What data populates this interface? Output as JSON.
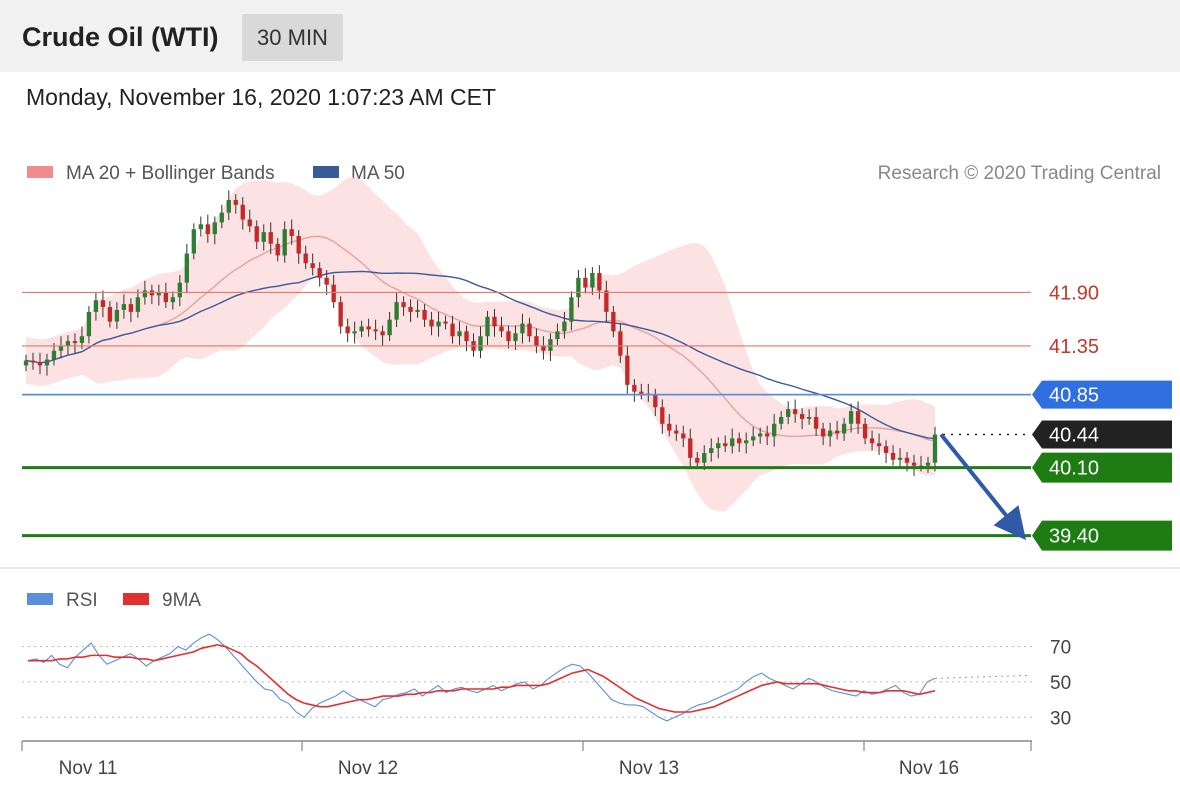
{
  "header": {
    "title": "Crude Oil (WTI)",
    "timeframe": "30 MIN"
  },
  "timestamp": "Monday, November 16, 2020 1:07:23 AM CET",
  "legend": {
    "bollinger": "MA 20 + Bollinger Bands",
    "ma50": "MA 50",
    "credit": "Research © 2020 Trading Central",
    "rsi": "RSI",
    "rsi_ma": "9MA"
  },
  "colors": {
    "band": "#fbd3d3",
    "ma20": "#e9a0a0",
    "ma50": "#3a5a9a",
    "up": "#2e7d32",
    "down": "#c62828",
    "resistance": "#e07a6a",
    "pivot_line": "#5b8fd9",
    "pivot_tag": "#2f6fe0",
    "support": "#1e7d12",
    "current_tag": "#222222",
    "rsi": "#5b8fd9",
    "rsi_ma": "#e03030",
    "arrow": "#2f5aa8"
  },
  "chart_data": [
    {
      "type": "candlestick",
      "title": "Crude Oil (WTI)",
      "timeframe": "30 MIN",
      "x_labels": [
        "Nov 11",
        "Nov 12",
        "Nov 13",
        "Nov 16"
      ],
      "ylim": [
        39.15,
        42.85
      ],
      "levels": [
        {
          "label": "41.90",
          "value": 41.9,
          "kind": "resistance"
        },
        {
          "label": "41.35",
          "value": 41.35,
          "kind": "resistance"
        },
        {
          "label": "40.85",
          "value": 40.85,
          "kind": "pivot"
        },
        {
          "label": "40.44",
          "value": 40.44,
          "kind": "current"
        },
        {
          "label": "40.10",
          "value": 40.1,
          "kind": "support"
        },
        {
          "label": "39.40",
          "value": 39.4,
          "kind": "support"
        }
      ],
      "forecast": {
        "from": 40.44,
        "to": 39.4
      },
      "closes": [
        41.2,
        41.18,
        41.15,
        41.21,
        41.3,
        41.35,
        41.4,
        41.38,
        41.45,
        41.7,
        41.82,
        41.75,
        41.6,
        41.72,
        41.78,
        41.7,
        41.85,
        41.92,
        41.87,
        41.9,
        41.8,
        41.85,
        42.0,
        42.3,
        42.55,
        42.6,
        42.5,
        42.62,
        42.72,
        42.85,
        42.8,
        42.65,
        42.58,
        42.42,
        42.52,
        42.4,
        42.28,
        42.55,
        42.48,
        42.3,
        42.2,
        42.15,
        42.05,
        41.98,
        41.8,
        41.55,
        41.48,
        41.5,
        41.55,
        41.52,
        41.5,
        41.46,
        41.62,
        41.8,
        41.75,
        41.7,
        41.72,
        41.62,
        41.55,
        41.6,
        41.58,
        41.45,
        41.5,
        41.4,
        41.3,
        41.45,
        41.65,
        41.55,
        41.5,
        41.4,
        41.48,
        41.58,
        41.45,
        41.35,
        41.3,
        41.42,
        41.5,
        41.6,
        41.85,
        42.05,
        41.95,
        42.1,
        41.92,
        41.7,
        41.5,
        41.25,
        40.95,
        40.88,
        40.86,
        40.85,
        40.72,
        40.55,
        40.48,
        40.45,
        40.4,
        40.2,
        40.15,
        40.25,
        40.3,
        40.35,
        40.32,
        40.4,
        40.35,
        40.38,
        40.42,
        40.45,
        40.42,
        40.55,
        40.62,
        40.7,
        40.65,
        40.6,
        40.62,
        40.5,
        40.42,
        40.48,
        40.45,
        40.55,
        40.68,
        40.55,
        40.4,
        40.35,
        40.32,
        40.25,
        40.18,
        40.2,
        40.15,
        40.12,
        40.12,
        40.15,
        40.44
      ]
    },
    {
      "type": "line",
      "title": "RSI",
      "series": [
        {
          "name": "RSI",
          "values": [
            62,
            63,
            61,
            65,
            60,
            58,
            64,
            68,
            72,
            65,
            60,
            62,
            64,
            66,
            63,
            59,
            62,
            64,
            66,
            70,
            68,
            72,
            75,
            77,
            74,
            70,
            65,
            60,
            55,
            50,
            46,
            45,
            40,
            38,
            33,
            30,
            35,
            38,
            40,
            42,
            45,
            42,
            40,
            38,
            36,
            40,
            41,
            43,
            44,
            46,
            42,
            45,
            48,
            44,
            46,
            47,
            45,
            44,
            46,
            48,
            45,
            47,
            49,
            50,
            46,
            48,
            52,
            55,
            58,
            60,
            59,
            55,
            50,
            45,
            40,
            38,
            37,
            37,
            36,
            33,
            30,
            28,
            30,
            32,
            35,
            37,
            38,
            40,
            42,
            44,
            46,
            50,
            53,
            55,
            52,
            50,
            48,
            46,
            49,
            52,
            50,
            47,
            45,
            44,
            43,
            42,
            45,
            43,
            44,
            46,
            48,
            44,
            42,
            43,
            50,
            52
          ]
        },
        {
          "name": "9MA",
          "values": [
            62,
            62,
            62,
            62,
            63,
            63,
            64,
            64,
            65,
            65,
            65,
            64,
            64,
            64,
            63,
            63,
            62,
            63,
            64,
            65,
            66,
            67,
            69,
            70,
            71,
            70,
            68,
            66,
            62,
            59,
            55,
            51,
            47,
            43,
            40,
            38,
            37,
            36,
            36,
            37,
            38,
            39,
            40,
            40,
            41,
            42,
            42,
            42,
            43,
            43,
            44,
            44,
            45,
            45,
            45,
            46,
            46,
            46,
            46,
            46,
            47,
            47,
            48,
            48,
            48,
            48,
            49,
            51,
            53,
            55,
            56,
            57,
            55,
            53,
            50,
            47,
            44,
            41,
            39,
            37,
            35,
            34,
            33,
            33,
            33,
            34,
            35,
            36,
            38,
            40,
            42,
            44,
            46,
            48,
            49,
            50,
            49,
            49,
            49,
            49,
            49,
            48,
            47,
            46,
            45,
            45,
            44,
            44,
            44,
            45,
            45,
            45,
            44,
            43,
            44,
            45
          ]
        }
      ],
      "ticks": [
        "70",
        "50",
        "30"
      ],
      "ylim": [
        20,
        85
      ]
    }
  ]
}
